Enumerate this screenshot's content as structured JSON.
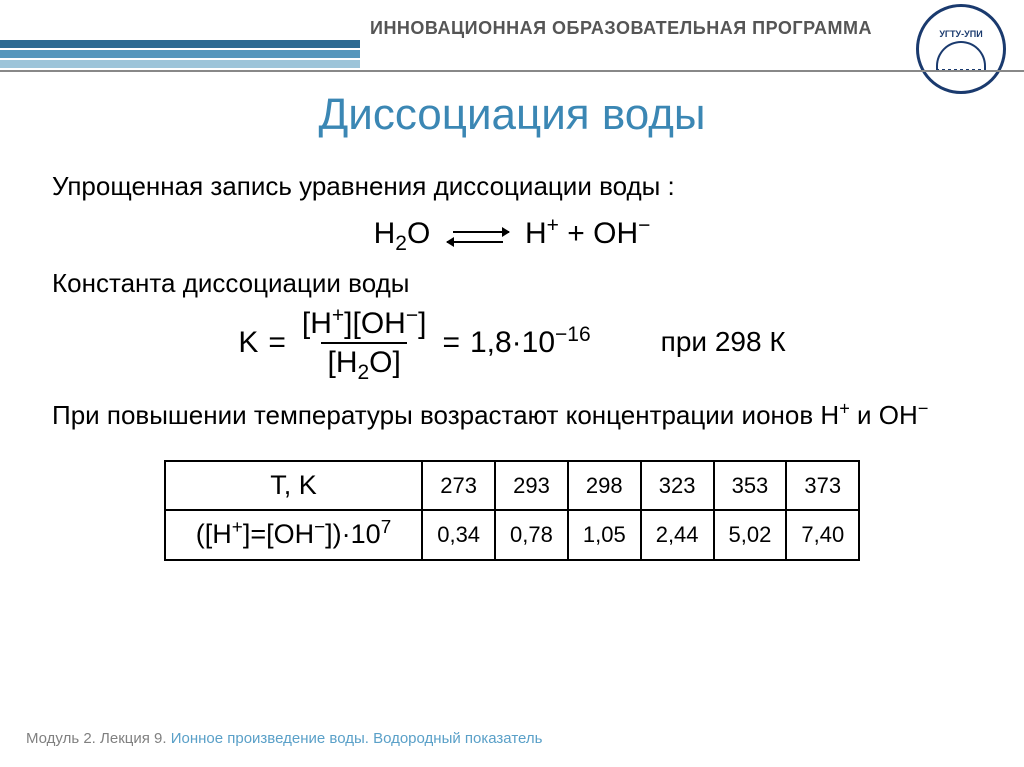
{
  "colors": {
    "title": "#3b87b4",
    "program": "#555555",
    "footer_module": "#808080",
    "footer_topic": "#5aa0c8",
    "stripe1": "#2d6b93",
    "stripe2": "#5797bc",
    "stripe3": "#9cc4d9"
  },
  "header": {
    "program": "ИННОВАЦИОННАЯ ОБРАЗОВАТЕЛЬНАЯ ПРОГРАММА",
    "logo_text": "УГТУ-УПИ"
  },
  "title": "Диссоциация воды",
  "body": {
    "line1": "Упрощенная запись уравнения диссоциации воды :",
    "eq_left": "H",
    "eq_left_sub": "2",
    "eq_left_tail": "O",
    "eq_right": "H",
    "eq_right_sup": "+",
    "eq_plus": " + OH",
    "eq_oh_sup": "−",
    "line2": "Константа диссоциации воды",
    "k_sym": "K",
    "equals": "=",
    "num_part1": "[H",
    "num_sup1": "+",
    "num_part2": "][OH",
    "num_sup2": "−",
    "num_part3": "]",
    "den_part1": "[H",
    "den_sub": "2",
    "den_part2": "O]",
    "k_value": "1,8·10",
    "k_exp": "−16",
    "at298": "при 298 К",
    "line3_a": "При повышении температуры возрастают концентрации ионов H",
    "line3_sup1": "+",
    "line3_mid": " и OH",
    "line3_sup2": "−"
  },
  "table": {
    "row1_header": "T,  K",
    "row2_header_a": "([H",
    "row2_header_sup1": "+",
    "row2_header_b": "]=[OH",
    "row2_header_sup2": "−",
    "row2_header_c": "])·10",
    "row2_header_sup3": "7",
    "temps": [
      "273",
      "293",
      "298",
      "323",
      "353",
      "373"
    ],
    "vals": [
      "0,34",
      "0,78",
      "1,05",
      "2,44",
      "5,02",
      "7,40"
    ]
  },
  "footer": {
    "module": "Модуль 2. Лекция 9. ",
    "topic": "Ионное произведение воды. Водородный показатель"
  }
}
